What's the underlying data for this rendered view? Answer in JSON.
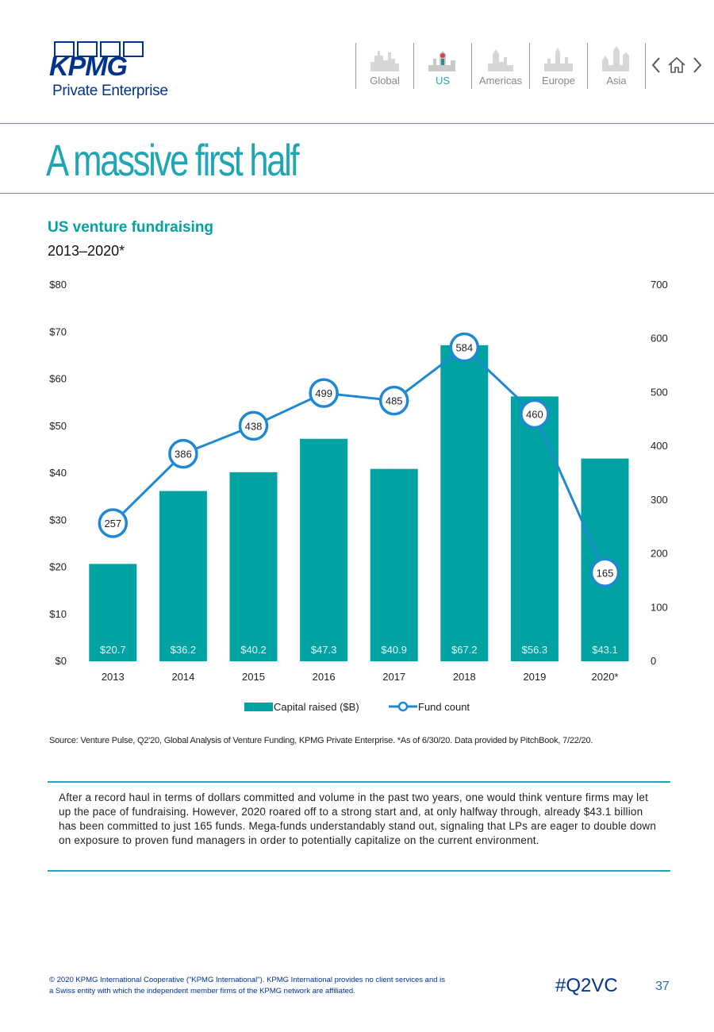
{
  "logo": {
    "word": "KPMG",
    "subtitle": "Private Enterprise"
  },
  "nav": {
    "regions": [
      {
        "label": "Global",
        "active": false
      },
      {
        "label": "US",
        "active": true
      },
      {
        "label": "Americas",
        "active": false
      },
      {
        "label": "Europe",
        "active": false
      },
      {
        "label": "Asia",
        "active": false
      }
    ],
    "controls": [
      "chevron-left-icon",
      "home-icon",
      "chevron-right-icon"
    ]
  },
  "page": {
    "title": "A massive first half"
  },
  "chart_data": {
    "type": "bar",
    "title": "US venture fundraising",
    "subtitle": "2013–2020*",
    "categories": [
      "2013",
      "2014",
      "2015",
      "2016",
      "2017",
      "2018",
      "2019",
      "2020*"
    ],
    "series": [
      {
        "name": "Capital raised ($B)",
        "type": "bar",
        "axis": "left",
        "values": [
          20.7,
          36.2,
          40.2,
          47.3,
          40.9,
          67.2,
          56.3,
          43.1
        ],
        "labels": [
          "$20.7",
          "$36.2",
          "$40.2",
          "$47.3",
          "$40.9",
          "$67.2",
          "$56.3",
          "$43.1"
        ],
        "color": "#00a3a1"
      },
      {
        "name": "Fund count",
        "type": "line",
        "axis": "right",
        "values": [
          257,
          386,
          438,
          499,
          485,
          584,
          460,
          165
        ],
        "labels": [
          "257",
          "386",
          "438",
          "499",
          "485",
          "584",
          "460",
          "165"
        ],
        "color": "#1e88d2"
      }
    ],
    "left_axis": {
      "ylim": [
        0,
        80
      ],
      "ticks": [
        0,
        10,
        20,
        30,
        40,
        50,
        60,
        70,
        80
      ],
      "tick_labels": [
        "$0",
        "$10",
        "$20",
        "$30",
        "$40",
        "$50",
        "$60",
        "$70",
        "$80"
      ]
    },
    "right_axis": {
      "ylim": [
        0,
        700
      ],
      "ticks": [
        0,
        100,
        200,
        300,
        400,
        500,
        600,
        700
      ],
      "tick_labels": [
        "0",
        "100",
        "200",
        "300",
        "400",
        "500",
        "600",
        "700"
      ]
    },
    "legend": {
      "position": "bottom",
      "entries": [
        "Capital raised ($B)",
        "Fund count"
      ]
    },
    "grid": false
  },
  "source": "Source: Venture Pulse, Q2'20, Global Analysis of Venture Funding, KPMG Private Enterprise. *As of 6/30/20. Data provided by PitchBook, 7/22/20.",
  "body_text": "After a record haul in terms of dollars committed and volume in the past two years, one would think venture firms may let up the pace of fundraising. However, 2020 roared off to a strong start and, at only halfway through, already $43.1 billion has been committed to just 165 funds. Mega-funds understandably stand out, signaling that LPs are eager to double down on exposure to proven fund managers in order to potentially capitalize on the current environment.",
  "footer": {
    "copyright": "© 2020 KPMG International Cooperative (\"KPMG International\"). KPMG International provides no client services and is a Swiss entity with which the independent member firms of the KPMG network are affiliated.",
    "hashtag": "#Q2VC",
    "page_number": "37"
  },
  "colors": {
    "teal": "#00a3a1",
    "line_blue": "#1e88d2",
    "title_teal": "#1ea6b5",
    "kpmg_blue": "#00338d"
  }
}
